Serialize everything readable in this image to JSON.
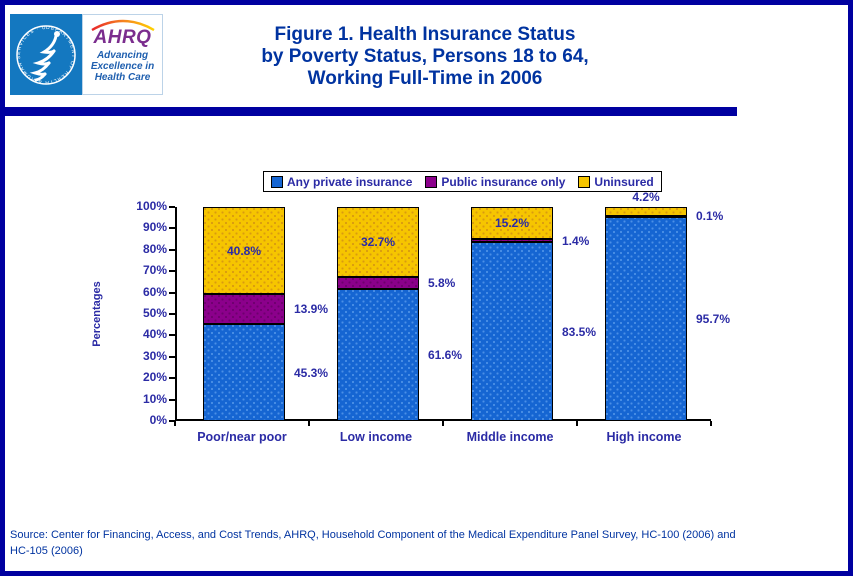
{
  "header": {
    "title_line1": "Figure 1. Health Insurance Status",
    "title_line2": "by Poverty Status, Persons 18 to 64,",
    "title_line3": "Working Full-Time in 2006"
  },
  "logo": {
    "acronym": "AHRQ",
    "tagline_line1": "Advancing",
    "tagline_line2": "Excellence in",
    "tagline_line3": "Health Care",
    "seal_text": "DEPARTMENT OF HEALTH & HUMAN SERVICES · USA"
  },
  "chart_data": {
    "type": "bar",
    "stacked": true,
    "title": "Figure 1. Health Insurance Status by Poverty Status, Persons 18 to 64, Working Full-Time in 2006",
    "categories": [
      "Poor/near poor",
      "Low income",
      "Middle income",
      "High income"
    ],
    "series": [
      {
        "name": "Any private insurance",
        "color": "#1565D2",
        "dot_color": "#4A8FE6",
        "values": [
          45.3,
          61.6,
          83.5,
          95.7
        ],
        "label_position": "right"
      },
      {
        "name": "Public insurance only",
        "color": "#8B008B",
        "dot_color": "#6E006E",
        "values": [
          13.9,
          5.8,
          1.4,
          0.1
        ],
        "label_position": "right"
      },
      {
        "name": "Uninsured",
        "color": "#F6C500",
        "dot_color": "#D99B10",
        "values": [
          40.8,
          32.7,
          15.2,
          4.2
        ],
        "label_position": "inside"
      }
    ],
    "xlabel": "",
    "ylabel": "Percentages",
    "ylim": [
      0,
      100
    ],
    "y_tick_step": 10,
    "y_tick_suffix": "%",
    "value_label_suffix": "%",
    "grid": false,
    "legend_position": "top"
  },
  "footer": {
    "source_line1": "Source: Center for Financing, Access, and Cost Trends, AHRQ, Household Component of the Medical Expenditure Panel Survey, HC-100 (2006) and",
    "source_line2": "HC-105 (2006)"
  },
  "colors": {
    "frame": "#0000A0",
    "divider": "#0000A0",
    "title_text": "#0033A0",
    "chart_text": "#2B2BA5",
    "axis": "#000000",
    "logo_panel_blue": "#1478C0",
    "ahrq_purple": "#7B2D8E",
    "tagline_blue": "#1F5FAF",
    "source_text": "#0033A0"
  }
}
